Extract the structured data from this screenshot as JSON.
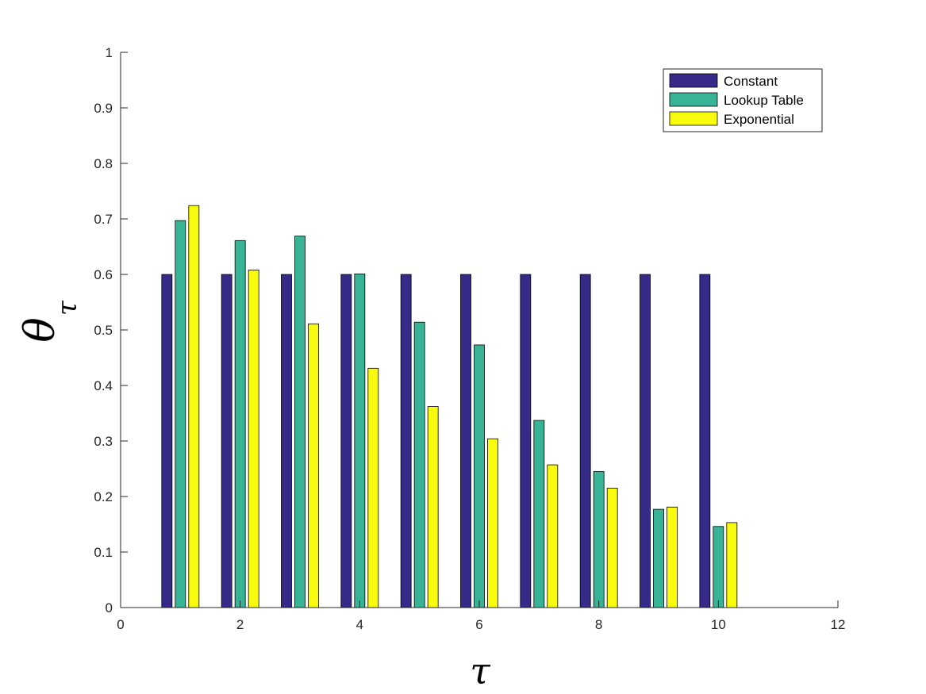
{
  "chart_data": {
    "type": "bar",
    "title": "",
    "xlabel": "τ",
    "ylabel_main": "θ",
    "ylabel_sub": "τ",
    "xlim": [
      0,
      12
    ],
    "ylim": [
      0,
      1
    ],
    "x_ticks": [
      0,
      2,
      4,
      6,
      8,
      10,
      12
    ],
    "y_ticks": [
      0,
      0.1,
      0.2,
      0.3,
      0.4,
      0.5,
      0.6,
      0.7,
      0.8,
      0.9,
      1
    ],
    "x": [
      1,
      2,
      3,
      4,
      5,
      6,
      7,
      8,
      9,
      10
    ],
    "series": [
      {
        "name": "Constant",
        "color": "#352a87",
        "values": [
          0.6,
          0.6,
          0.6,
          0.6,
          0.6,
          0.6,
          0.6,
          0.6,
          0.6,
          0.6
        ]
      },
      {
        "name": "Lookup Table",
        "color": "#39b395",
        "values": [
          0.697,
          0.661,
          0.669,
          0.601,
          0.514,
          0.473,
          0.337,
          0.245,
          0.177,
          0.146
        ]
      },
      {
        "name": "Exponential",
        "color": "#f9fb0e",
        "values": [
          0.724,
          0.608,
          0.511,
          0.431,
          0.362,
          0.304,
          0.257,
          0.215,
          0.181,
          0.153
        ]
      }
    ],
    "grid": false,
    "legend_position": "top-right"
  }
}
